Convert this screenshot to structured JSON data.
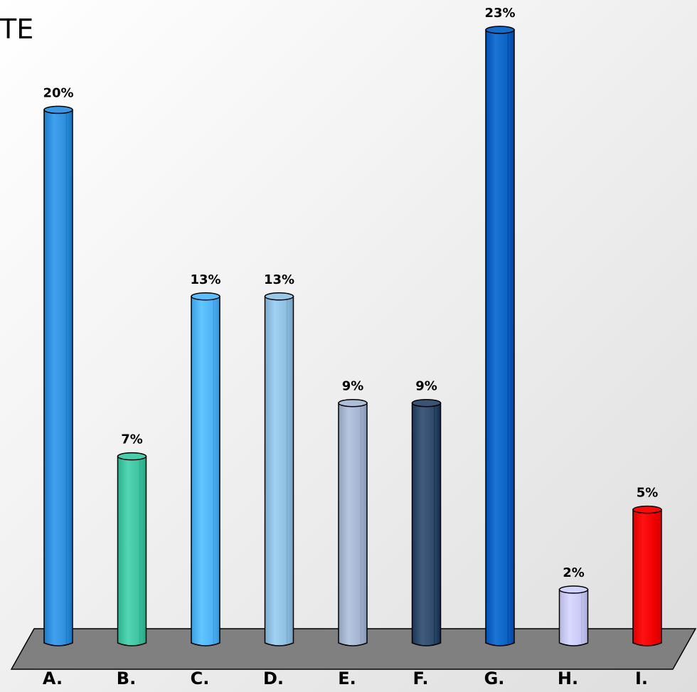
{
  "chart_data": {
    "type": "bar",
    "title": "TE",
    "xlabel": "",
    "ylabel": "",
    "ylim": [
      0,
      23
    ],
    "grid": false,
    "legend": "none",
    "categories": [
      "A.",
      "B.",
      "C.",
      "D.",
      "E.",
      "F.",
      "G.",
      "H.",
      "I."
    ],
    "values": [
      20,
      7,
      13,
      13,
      9,
      9,
      23,
      2,
      5
    ],
    "data_labels": [
      "20%",
      "7%",
      "13%",
      "13%",
      "9%",
      "9%",
      "23%",
      "2%",
      "5%"
    ],
    "colors": [
      "#2f8fdc",
      "#3fc3a0",
      "#4fb3f5",
      "#8fbfe0",
      "#a4b4cf",
      "#2f4a6a",
      "#0a62c2",
      "#c8c8f4",
      "#f20000"
    ],
    "floor_color": "#808080"
  }
}
